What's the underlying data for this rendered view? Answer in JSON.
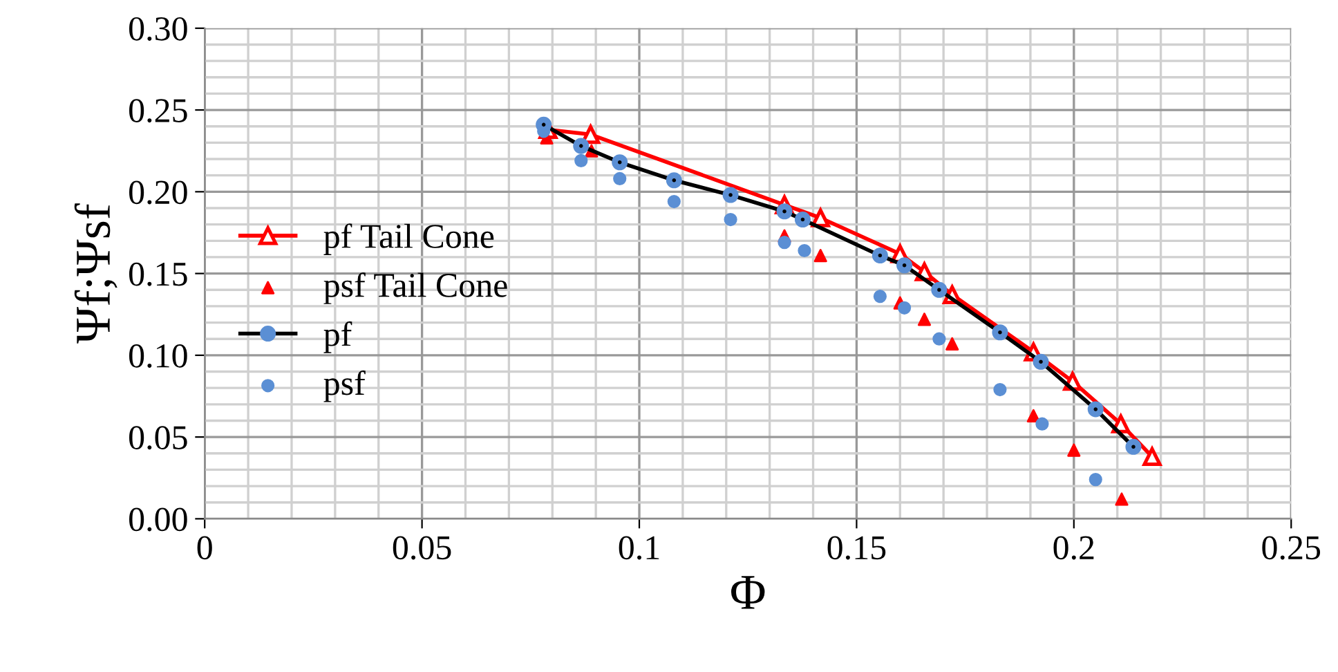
{
  "chart_data": {
    "type": "line",
    "xlabel": "Φ",
    "ylabel": "Ψf;Ψsf",
    "xlim": [
      0,
      0.25
    ],
    "ylim": [
      0,
      0.3
    ],
    "xticks": [
      0,
      0.05,
      {
        "value": 0.1,
        "label": "0.1"
      },
      0.15,
      {
        "value": 0.2,
        "label": "0.2"
      },
      0.25
    ],
    "yticks": [
      {
        "value": 0,
        "label": "0.00"
      },
      0.05,
      {
        "value": 0.1,
        "label": "0.10"
      },
      0.15,
      {
        "value": 0.2,
        "label": "0.20"
      },
      0.25,
      {
        "value": 0.3,
        "label": "0.30"
      }
    ],
    "grid": true,
    "legend": "left",
    "series": [
      {
        "name": "pf Tail Cone",
        "marker": "triangle",
        "line_style": "solid",
        "color": "#ff0000",
        "x": [
          0.079,
          0.0888,
          0.1334,
          0.1417,
          0.16,
          0.1656,
          0.172,
          0.1907,
          0.1997,
          0.2108,
          0.218
        ],
        "values": [
          0.238,
          0.235,
          0.192,
          0.184,
          0.162,
          0.151,
          0.137,
          0.102,
          0.084,
          0.058,
          0.038
        ]
      },
      {
        "name": "psf Tail Cone",
        "type": "scatter",
        "marker": "triangle",
        "color": "#ff0000",
        "x": [
          0.0787,
          0.089,
          0.1334,
          0.1417,
          0.16,
          0.1656,
          0.172,
          0.1907,
          0.2,
          0.211
        ],
        "values": [
          0.233,
          0.225,
          0.173,
          0.161,
          0.132,
          0.122,
          0.107,
          0.063,
          0.042,
          0.012
        ]
      },
      {
        "name": "pf",
        "marker": "circle",
        "line_style": "solid",
        "color": "#000000",
        "colors": [
          "#5b8fd4",
          "#5b8fd4",
          "#5b8fd4",
          "#5b8fd4",
          "#5b8fd4",
          "#5b8fd4",
          "#5b8fd4",
          "#5b8fd4",
          "#5b8fd4",
          "#5b8fd4",
          "#5b8fd4",
          "#5b8fd4",
          "#5b8fd4",
          "#5b8fd4"
        ],
        "x": [
          0.078,
          0.0866,
          0.0955,
          0.108,
          0.121,
          0.1334,
          0.1376,
          0.1554,
          0.161,
          0.169,
          0.183,
          0.1924,
          0.205,
          0.2137
        ],
        "values": [
          0.241,
          0.228,
          0.218,
          0.207,
          0.198,
          0.188,
          0.183,
          0.161,
          0.155,
          0.14,
          0.114,
          0.096,
          0.067,
          0.044
        ]
      },
      {
        "name": "psf",
        "type": "scatter",
        "marker": "circle",
        "color": "#5b8fd4",
        "x": [
          0.078,
          0.0866,
          0.0955,
          0.108,
          0.121,
          0.1334,
          0.138,
          0.1554,
          0.161,
          0.169,
          0.183,
          0.1927,
          0.205
        ],
        "values": [
          0.237,
          0.219,
          0.208,
          0.194,
          0.183,
          0.169,
          0.164,
          0.136,
          0.129,
          0.11,
          0.079,
          0.058,
          0.024
        ]
      }
    ]
  }
}
